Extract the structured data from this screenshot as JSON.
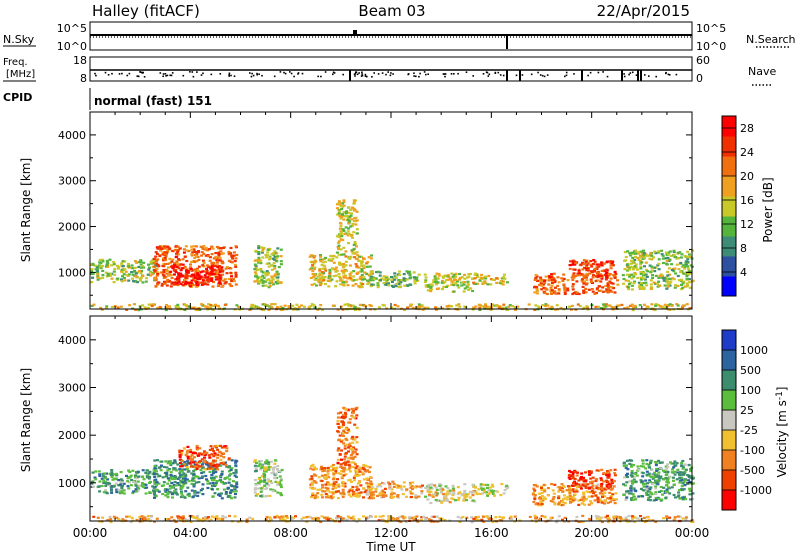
{
  "header": {
    "title_left": "Halley (fitACF)",
    "title_center": "Beam 03",
    "title_right": "22/Apr/2015"
  },
  "panels": {
    "nsky": {
      "label": "N.Sky",
      "tick_top": "10^5",
      "tick_bottom": "10^0",
      "right_label": "N.Search",
      "right_tick_top": "10^5",
      "right_tick_bottom": "10^0"
    },
    "freq": {
      "label_line1": "Freq.",
      "label_line2": "[MHz]",
      "tick_top": "18",
      "tick_bottom": "8",
      "right_label": "Nave",
      "right_tick_top": "60",
      "right_tick_bottom": "0"
    },
    "cpid": {
      "label": "CPID",
      "mode_text": "normal (fast) 151"
    }
  },
  "colors": {
    "power_scale": [
      "#0000ff",
      "#2d50a0",
      "#3c8c78",
      "#55b43c",
      "#c8c828",
      "#f0a020",
      "#f07010",
      "#f03000",
      "#ff0000"
    ],
    "velocity_scale": [
      "#ff0000",
      "#f04000",
      "#f08020",
      "#f0c030",
      "#c8c8c0",
      "#5abe3c",
      "#3c8c6e",
      "#2d64a0",
      "#1e3cc8"
    ]
  },
  "chart_data": [
    {
      "type": "heatmap",
      "name": "Power",
      "xlabel": "",
      "ylabel": "Slant Range [km]",
      "xlim": [
        0,
        24
      ],
      "ylim": [
        200,
        4500
      ],
      "x_ticks": [
        "00:00",
        "04:00",
        "08:00",
        "12:00",
        "16:00",
        "20:00",
        "00:00"
      ],
      "y_ticks": [
        1000,
        2000,
        3000,
        4000
      ],
      "colorbar": {
        "label": "Power [dB]",
        "ticks": [
          4,
          8,
          12,
          16,
          20,
          24,
          28
        ],
        "range": [
          0,
          30
        ]
      },
      "regions": [
        {
          "t": [
            0.0,
            2.6
          ],
          "r": [
            800,
            1300
          ],
          "level": 0.45
        },
        {
          "t": [
            2.5,
            5.8
          ],
          "r": [
            700,
            1600
          ],
          "level": 0.75
        },
        {
          "t": [
            3.2,
            5.2
          ],
          "r": [
            750,
            1200
          ],
          "level": 0.95
        },
        {
          "t": [
            6.5,
            7.6
          ],
          "r": [
            700,
            1600
          ],
          "level": 0.45
        },
        {
          "t": [
            8.7,
            11.2
          ],
          "r": [
            700,
            1400
          ],
          "level": 0.55
        },
        {
          "t": [
            9.8,
            10.6
          ],
          "r": [
            1400,
            2600
          ],
          "level": 0.5
        },
        {
          "t": [
            11.0,
            13.2
          ],
          "r": [
            700,
            1050
          ],
          "level": 0.4
        },
        {
          "t": [
            13.3,
            15.3
          ],
          "r": [
            600,
            1000
          ],
          "level": 0.5
        },
        {
          "t": [
            15.2,
            16.6
          ],
          "r": [
            750,
            1000
          ],
          "level": 0.55
        },
        {
          "t": [
            17.6,
            21.0
          ],
          "r": [
            550,
            1000
          ],
          "level": 0.75
        },
        {
          "t": [
            19.0,
            20.9
          ],
          "r": [
            900,
            1300
          ],
          "level": 0.85
        },
        {
          "t": [
            21.2,
            24.0
          ],
          "r": [
            650,
            1500
          ],
          "level": 0.45
        },
        {
          "t": [
            0.0,
            24.0
          ],
          "r": [
            200,
            330
          ],
          "level": 0.55
        }
      ]
    },
    {
      "type": "heatmap",
      "name": "Velocity",
      "xlabel": "Time UT",
      "ylabel": "Slant Range [km]",
      "xlim": [
        0,
        24
      ],
      "ylim": [
        200,
        4500
      ],
      "x_ticks": [
        "00:00",
        "04:00",
        "08:00",
        "12:00",
        "16:00",
        "20:00",
        "00:00"
      ],
      "y_ticks": [
        1000,
        2000,
        3000,
        4000
      ],
      "colorbar": {
        "label": "Velocity [m s^-1]",
        "ticks": [
          "-1000",
          "-500",
          "-100",
          "-25",
          "25",
          "100",
          "500",
          "1000"
        ]
      },
      "regions": [
        {
          "t": [
            0.0,
            2.6
          ],
          "r": [
            800,
            1300
          ],
          "level": 0.68
        },
        {
          "t": [
            2.5,
            5.8
          ],
          "r": [
            700,
            1500
          ],
          "level": 0.72
        },
        {
          "t": [
            3.5,
            5.5
          ],
          "r": [
            1300,
            1800
          ],
          "level": 0.2
        },
        {
          "t": [
            6.5,
            7.6
          ],
          "r": [
            700,
            1500
          ],
          "level": 0.55
        },
        {
          "t": [
            8.7,
            11.2
          ],
          "r": [
            700,
            1400
          ],
          "level": 0.3
        },
        {
          "t": [
            9.8,
            10.6
          ],
          "r": [
            1400,
            2600
          ],
          "level": 0.25
        },
        {
          "t": [
            11.0,
            13.2
          ],
          "r": [
            700,
            1050
          ],
          "level": 0.35
        },
        {
          "t": [
            13.3,
            15.3
          ],
          "r": [
            600,
            1000
          ],
          "level": 0.45
        },
        {
          "t": [
            15.2,
            16.6
          ],
          "r": [
            750,
            1000
          ],
          "level": 0.5
        },
        {
          "t": [
            17.6,
            21.0
          ],
          "r": [
            550,
            1000
          ],
          "level": 0.3
        },
        {
          "t": [
            19.0,
            20.9
          ],
          "r": [
            900,
            1300
          ],
          "level": 0.15
        },
        {
          "t": [
            21.2,
            24.0
          ],
          "r": [
            650,
            1500
          ],
          "level": 0.68
        },
        {
          "t": [
            0.0,
            24.0
          ],
          "r": [
            200,
            330
          ],
          "level": 0.35
        }
      ]
    }
  ]
}
